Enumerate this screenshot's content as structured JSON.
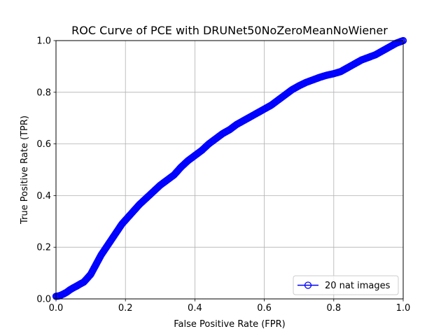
{
  "chart_data": {
    "type": "line",
    "title": "ROC Curve of PCE with DRUNet50NoZeroMeanNoWiener",
    "xlabel": "False Positive Rate (FPR)",
    "ylabel": "True Positive Rate (TPR)",
    "xlim": [
      0.0,
      1.0
    ],
    "ylim": [
      0.0,
      1.0
    ],
    "xticks": [
      "0.0",
      "0.2",
      "0.4",
      "0.6",
      "0.8",
      "1.0"
    ],
    "yticks": [
      "0.0",
      "0.2",
      "0.4",
      "0.6",
      "0.8",
      "1.0"
    ],
    "grid": true,
    "legend_position": "lower-right",
    "series": [
      {
        "name": "20 nat images",
        "color": "#0000ff",
        "marker": "circle-open",
        "x": [
          0.0,
          0.01,
          0.02,
          0.03,
          0.04,
          0.05,
          0.06,
          0.07,
          0.08,
          0.09,
          0.1,
          0.11,
          0.12,
          0.13,
          0.14,
          0.15,
          0.16,
          0.17,
          0.18,
          0.19,
          0.2,
          0.22,
          0.24,
          0.26,
          0.28,
          0.3,
          0.32,
          0.34,
          0.36,
          0.38,
          0.4,
          0.42,
          0.44,
          0.46,
          0.48,
          0.5,
          0.52,
          0.54,
          0.56,
          0.58,
          0.6,
          0.62,
          0.64,
          0.66,
          0.68,
          0.7,
          0.72,
          0.74,
          0.76,
          0.78,
          0.8,
          0.82,
          0.84,
          0.86,
          0.88,
          0.9,
          0.92,
          0.94,
          0.96,
          0.98,
          1.0
        ],
        "y": [
          0.01,
          0.012,
          0.018,
          0.025,
          0.035,
          0.043,
          0.05,
          0.058,
          0.065,
          0.08,
          0.095,
          0.12,
          0.145,
          0.17,
          0.19,
          0.21,
          0.23,
          0.25,
          0.27,
          0.29,
          0.305,
          0.335,
          0.365,
          0.39,
          0.415,
          0.44,
          0.46,
          0.48,
          0.51,
          0.535,
          0.555,
          0.575,
          0.6,
          0.62,
          0.64,
          0.655,
          0.675,
          0.69,
          0.705,
          0.72,
          0.735,
          0.75,
          0.77,
          0.79,
          0.81,
          0.825,
          0.838,
          0.848,
          0.858,
          0.866,
          0.872,
          0.88,
          0.895,
          0.91,
          0.925,
          0.935,
          0.945,
          0.96,
          0.975,
          0.99,
          1.0
        ]
      }
    ]
  }
}
